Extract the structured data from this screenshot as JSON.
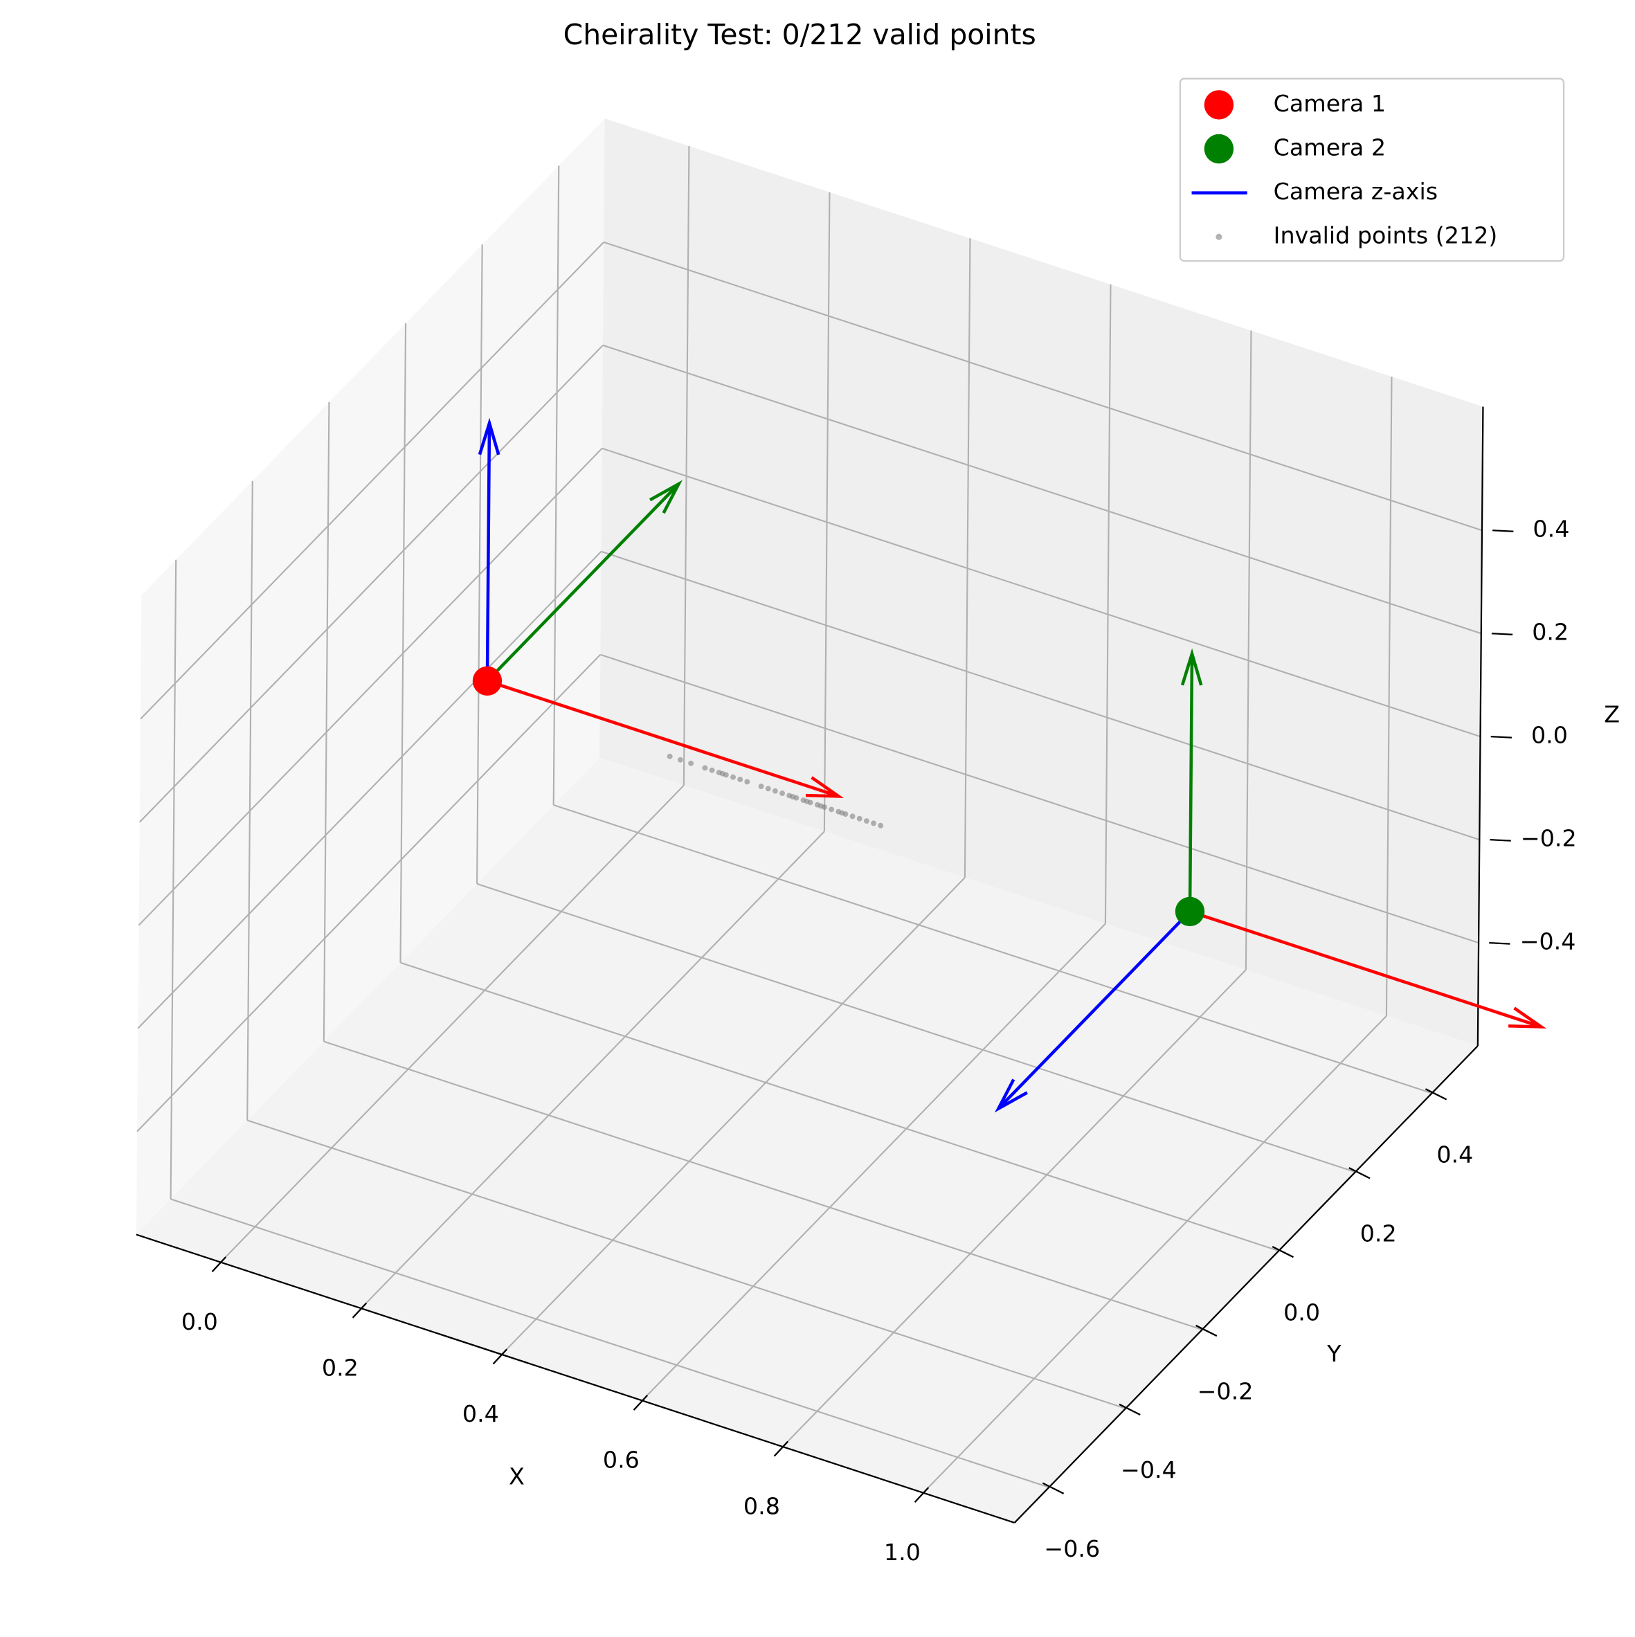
{
  "chart_data": {
    "type": "scatter3d",
    "title": "Cheirality Test: 0/212 valid points",
    "xlabel": "X",
    "ylabel": "Y",
    "zlabel": "Z",
    "xlim": [
      -0.12,
      1.13
    ],
    "ylim": [
      -0.69,
      0.52
    ],
    "zlim": [
      -0.6,
      0.64
    ],
    "xticks": [
      {
        "value": 0,
        "label": "0.0"
      },
      0.2,
      0.4,
      0.6,
      0.8,
      {
        "value": 1,
        "label": "1.0"
      }
    ],
    "yticks": [
      {
        "value": -0.6,
        "label": "−0.6"
      },
      {
        "value": -0.4,
        "label": "−0.4"
      },
      {
        "value": -0.2,
        "label": "−0.2"
      },
      {
        "value": 0,
        "label": "0.0"
      },
      0.2,
      0.4
    ],
    "zticks": [
      {
        "value": -0.4,
        "label": "−0.4"
      },
      {
        "value": -0.2,
        "label": "−0.2"
      },
      {
        "value": 0,
        "label": "0.0"
      },
      0.2,
      0.4
    ],
    "grid": true,
    "legend": "upper right",
    "axis_colors": {
      "x": "red",
      "y": "green",
      "z": "blue"
    },
    "axis_legend": "Camera z-axis",
    "cameras": [
      {
        "name": "Camera 1",
        "color": "red",
        "position": [
          0,
          0,
          0
        ],
        "axes": {
          "x": [
            0.5,
            0,
            0
          ],
          "y": [
            0,
            0.5,
            0
          ],
          "z": [
            0,
            0,
            0.5
          ]
        }
      },
      {
        "name": "Camera 2",
        "color": "green",
        "position": [
          1,
          0,
          0
        ],
        "axes": {
          "x": [
            0.5,
            0,
            0
          ],
          "y": [
            0,
            0,
            0.5
          ],
          "z": [
            0,
            -0.5,
            0
          ]
        }
      }
    ],
    "points": {
      "name": "Invalid points (212)",
      "color": "gray",
      "x": [
        0.26,
        0.275,
        0.29,
        0.31,
        0.32,
        0.33,
        0.335,
        0.34,
        0.35,
        0.36,
        0.37,
        0.39,
        0.4,
        0.41,
        0.42,
        0.43,
        0.435,
        0.44,
        0.45,
        0.455,
        0.46,
        0.47,
        0.475,
        0.48,
        0.49,
        0.5,
        0.505,
        0.51,
        0.52,
        0.53,
        0.54,
        0.55,
        0.56
      ],
      "y": [
        0,
        0,
        0,
        0,
        0,
        0,
        0,
        0,
        0,
        0,
        0,
        0,
        0,
        0,
        0,
        0,
        0,
        0,
        0,
        0,
        0,
        0,
        0,
        0,
        0,
        0,
        0,
        0,
        0,
        0,
        0,
        0,
        0
      ],
      "z": [
        -0.03,
        -0.03,
        -0.03,
        -0.03,
        -0.03,
        -0.03,
        -0.03,
        -0.03,
        -0.03,
        -0.03,
        -0.03,
        -0.03,
        -0.03,
        -0.03,
        -0.03,
        -0.03,
        -0.03,
        -0.03,
        -0.03,
        -0.03,
        -0.03,
        -0.03,
        -0.03,
        -0.03,
        -0.03,
        -0.03,
        -0.03,
        -0.03,
        -0.03,
        -0.03,
        -0.03,
        -0.03,
        -0.03
      ]
    }
  }
}
